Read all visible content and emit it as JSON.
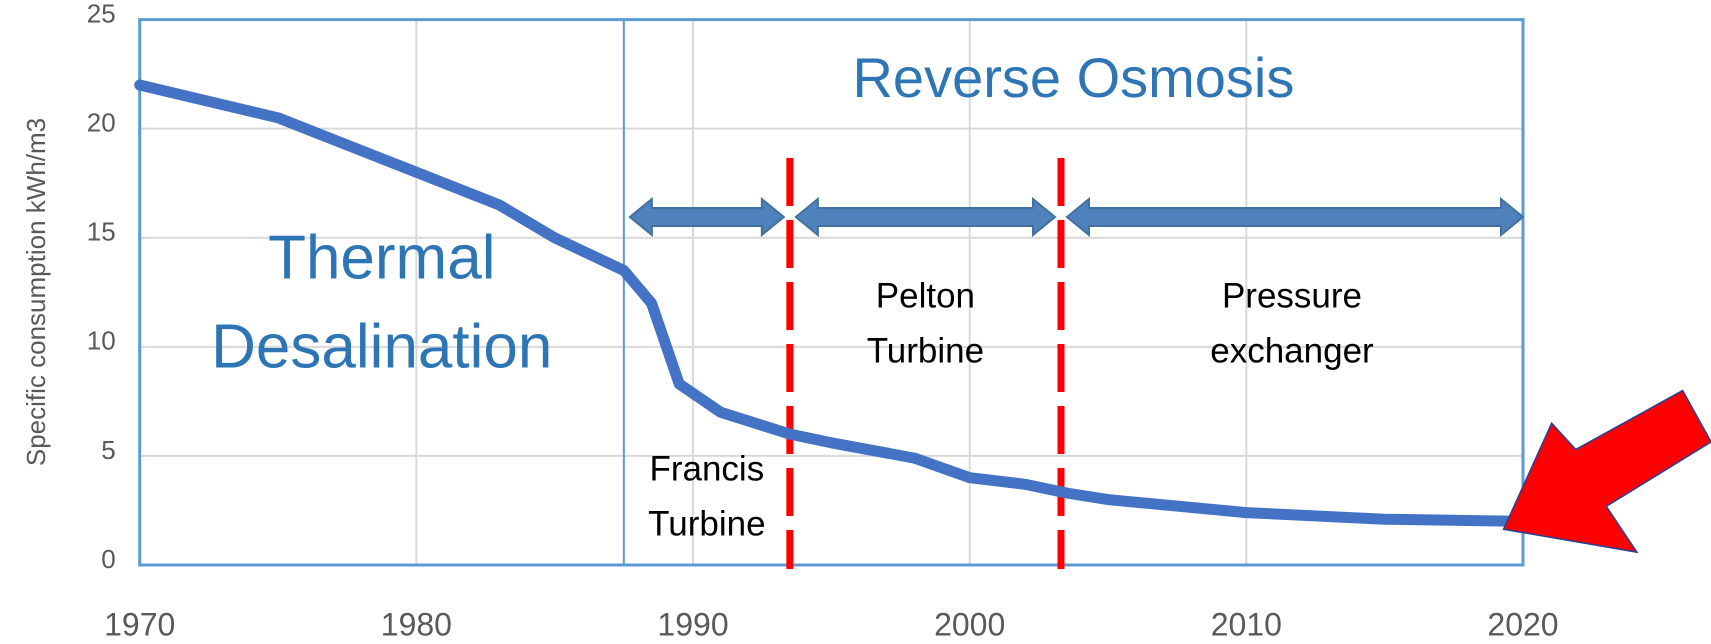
{
  "chart_data": {
    "type": "line",
    "y_label": "Specific consumption kWh/m3",
    "x": [
      1970,
      1975,
      1980,
      1983,
      1985,
      1987.5,
      1988.5,
      1989.5,
      1991,
      1993.5,
      1995,
      1998,
      2000,
      2002,
      2003.5,
      2005,
      2010,
      2015,
      2020
    ],
    "series": [
      {
        "name": "Specific consumption",
        "color": "#4472c4",
        "values": [
          22,
          20.5,
          18,
          16.5,
          15,
          13.5,
          12,
          8.3,
          7,
          6,
          5.6,
          4.9,
          4,
          3.7,
          3.3,
          3,
          2.4,
          2.1,
          2.0
        ]
      }
    ],
    "xlim": [
      1970,
      2020
    ],
    "xticks": [
      1970,
      1980,
      1990,
      2000,
      2010,
      2020
    ],
    "ylim": [
      0,
      25
    ],
    "yticks": [
      0,
      5,
      10,
      15,
      20,
      25
    ],
    "grid": true,
    "eras": [
      {
        "label": [
          "Thermal",
          "Desalination"
        ],
        "start": 1970,
        "end": 1987.5
      },
      {
        "label": [
          "Reverse Osmosis"
        ],
        "start": 1987.5,
        "end": 2020
      }
    ],
    "stages": [
      {
        "label": [
          "Francis",
          "Turbine"
        ],
        "start": 1987.5,
        "end": 1993.5
      },
      {
        "label": [
          "Pelton",
          "Turbine"
        ],
        "start": 1993.5,
        "end": 2003.3
      },
      {
        "label": [
          "Pressure",
          "exchanger"
        ],
        "start": 2003.3,
        "end": 2020
      }
    ]
  }
}
